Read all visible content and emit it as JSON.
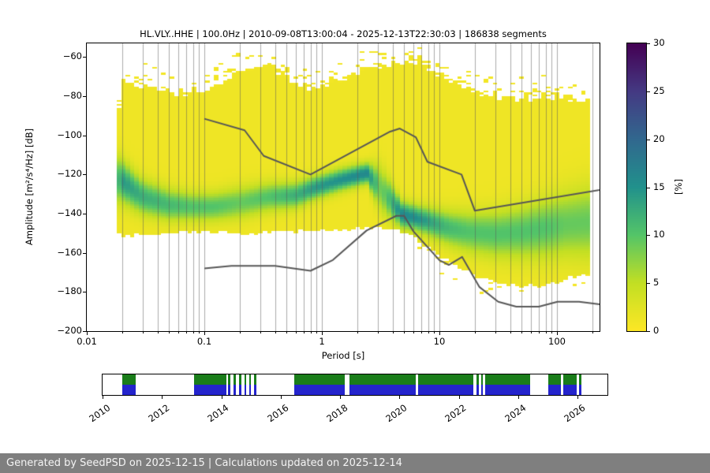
{
  "chart_data": {
    "type": "heatmap",
    "subtype": "ppsd-probabilistic-power-spectral-density",
    "title": "HL.VLY..HHE | 100.0Hz | 2010-09-08T13:00:04 - 2025-12-13T22:30:03 | 186838 segments",
    "station_id": "HL.VLY..HHE",
    "sampling_rate": "100.0Hz",
    "time_range": "2010-09-08T13:00:04 - 2025-12-13T22:30:03",
    "segments_count": 186838,
    "xlabel": "Period [s]",
    "ylabel": "Amplitude [m²/s⁴/Hz] [dB]",
    "xscale": "log",
    "xlim": [
      0.01,
      230
    ],
    "ylim": [
      -200,
      -53
    ],
    "x_ticks": [
      {
        "value": 0.01,
        "label": "0.01"
      },
      {
        "value": 0.1,
        "label": "0.1"
      },
      {
        "value": 1,
        "label": "1"
      },
      {
        "value": 10,
        "label": "10"
      },
      {
        "value": 100,
        "label": "100"
      }
    ],
    "y_ticks": [
      -60,
      -80,
      -100,
      -120,
      -140,
      -160,
      -180,
      -200
    ],
    "grid": "vertical gridlines at every log minor and major tick",
    "colorbar": {
      "label": "[%]",
      "min": 0,
      "max": 30,
      "ticks": [
        0,
        5,
        10,
        15,
        20,
        25,
        30
      ],
      "colormap": "viridis reversed (yellow = 0%, dark purple = 30%)",
      "stops": [
        {
          "v": 0,
          "c": "#fde725"
        },
        {
          "v": 5,
          "c": "#c2df23"
        },
        {
          "v": 10,
          "c": "#54c568"
        },
        {
          "v": 15,
          "c": "#21918c"
        },
        {
          "v": 20,
          "c": "#31688e"
        },
        {
          "v": 25,
          "c": "#443a83"
        },
        {
          "v": 30,
          "c": "#440154"
        }
      ]
    },
    "histogram_model": {
      "description": "PPSD probability density: per period column, yellow bulk between bottom_db and top_db (~1-2%), green/teal ridge centered at mode_db reaching mode_peak_percent",
      "bins_per_octave": 8,
      "db_bin_width": 1,
      "period_range": [
        0.018,
        185
      ],
      "base_percent": 1.2,
      "columns_format": [
        "period_s",
        "top_db",
        "bottom_db",
        "mode_db",
        "mode_peak_percent",
        "mode_spread_db"
      ],
      "columns": [
        [
          0.018,
          -100,
          -148,
          -123,
          9,
          8
        ],
        [
          0.02,
          -75,
          -151,
          -124,
          13,
          7
        ],
        [
          0.03,
          -78,
          -149,
          -132,
          11,
          6
        ],
        [
          0.05,
          -81,
          -148,
          -136,
          10,
          5.5
        ],
        [
          0.08,
          -82,
          -148,
          -137,
          9,
          5
        ],
        [
          0.12,
          -80,
          -148,
          -137,
          9,
          5
        ],
        [
          0.2,
          -70,
          -149,
          -135,
          8,
          5.5
        ],
        [
          0.35,
          -67,
          -148,
          -132,
          9,
          5
        ],
        [
          0.6,
          -77,
          -148,
          -131,
          11,
          4.5
        ],
        [
          0.9,
          -79,
          -147,
          -127,
          13,
          4
        ],
        [
          1.5,
          -74,
          -147,
          -123,
          14,
          3.8
        ],
        [
          2.4,
          -70,
          -146,
          -120,
          15,
          3.5
        ],
        [
          3.2,
          -68,
          -146,
          -128,
          7,
          8
        ],
        [
          4.8,
          -66,
          -148,
          -141,
          15,
          4.5
        ],
        [
          6.5,
          -66,
          -152,
          -143,
          14,
          4.5
        ],
        [
          8.5,
          -70,
          -157,
          -145,
          12,
          5
        ],
        [
          12,
          -76,
          -163,
          -148,
          10,
          6
        ],
        [
          18,
          -80,
          -169,
          -150,
          9,
          7
        ],
        [
          30,
          -84,
          -174,
          -151,
          9,
          8
        ],
        [
          50,
          -85,
          -176,
          -150,
          9,
          9
        ],
        [
          80,
          -84,
          -175,
          -148,
          9,
          10
        ],
        [
          120,
          -85,
          -172,
          -146,
          8,
          11
        ],
        [
          180,
          -86,
          -170,
          -145,
          8,
          12
        ]
      ]
    },
    "noise_models": {
      "color": "#575757",
      "points_format": [
        "period_s",
        "amplitude_db"
      ],
      "nhnm": [
        [
          0.1,
          -91.5
        ],
        [
          0.22,
          -97.4
        ],
        [
          0.32,
          -110.5
        ],
        [
          0.8,
          -120.0
        ],
        [
          3.8,
          -98.1
        ],
        [
          4.6,
          -96.5
        ],
        [
          6.3,
          -101.0
        ],
        [
          7.9,
          -113.5
        ],
        [
          15.4,
          -120.0
        ],
        [
          20.0,
          -138.5
        ],
        [
          354.8,
          -126.0
        ]
      ],
      "nlnm": [
        [
          0.1,
          -168.0
        ],
        [
          0.17,
          -166.7
        ],
        [
          0.4,
          -166.7
        ],
        [
          0.8,
          -169.2
        ],
        [
          1.24,
          -163.7
        ],
        [
          2.4,
          -148.6
        ],
        [
          4.3,
          -141.1
        ],
        [
          5.0,
          -141.1
        ],
        [
          6.0,
          -149.0
        ],
        [
          10.0,
          -163.8
        ],
        [
          12.0,
          -166.2
        ],
        [
          15.6,
          -162.1
        ],
        [
          21.9,
          -177.5
        ],
        [
          31.6,
          -185.0
        ],
        [
          45.0,
          -187.5
        ],
        [
          70.0,
          -187.5
        ],
        [
          101.0,
          -185.0
        ],
        [
          154.0,
          -185.0
        ],
        [
          328.0,
          -187.5
        ]
      ]
    }
  },
  "timeline": {
    "start_year": 2010,
    "end_year": 2027,
    "tick_years": [
      2010,
      2012,
      2014,
      2016,
      2018,
      2020,
      2022,
      2024,
      2026
    ],
    "green": "#1a7d1a",
    "blue": "#2424cc",
    "segments_format": [
      "start_year_decimal",
      "end_year_decimal"
    ],
    "segments": [
      [
        2010.66,
        2011.12
      ],
      [
        2013.08,
        2014.17
      ],
      [
        2014.22,
        2014.3
      ],
      [
        2014.41,
        2014.49
      ],
      [
        2014.6,
        2014.67
      ],
      [
        2014.78,
        2014.83
      ],
      [
        2014.94,
        2014.99
      ],
      [
        2015.1,
        2015.18
      ],
      [
        2016.45,
        2018.15
      ],
      [
        2018.31,
        2020.54
      ],
      [
        2020.62,
        2022.48
      ],
      [
        2022.59,
        2022.67
      ],
      [
        2022.75,
        2022.8
      ],
      [
        2022.88,
        2024.39
      ],
      [
        2025.0,
        2025.43
      ],
      [
        2025.51,
        2025.96
      ],
      [
        2026.04,
        2026.12
      ]
    ]
  },
  "footer": {
    "text": "Generated by SeedPSD on 2025-12-15 | Calculations updated on 2025-12-14",
    "background": "#7f7f7f"
  }
}
